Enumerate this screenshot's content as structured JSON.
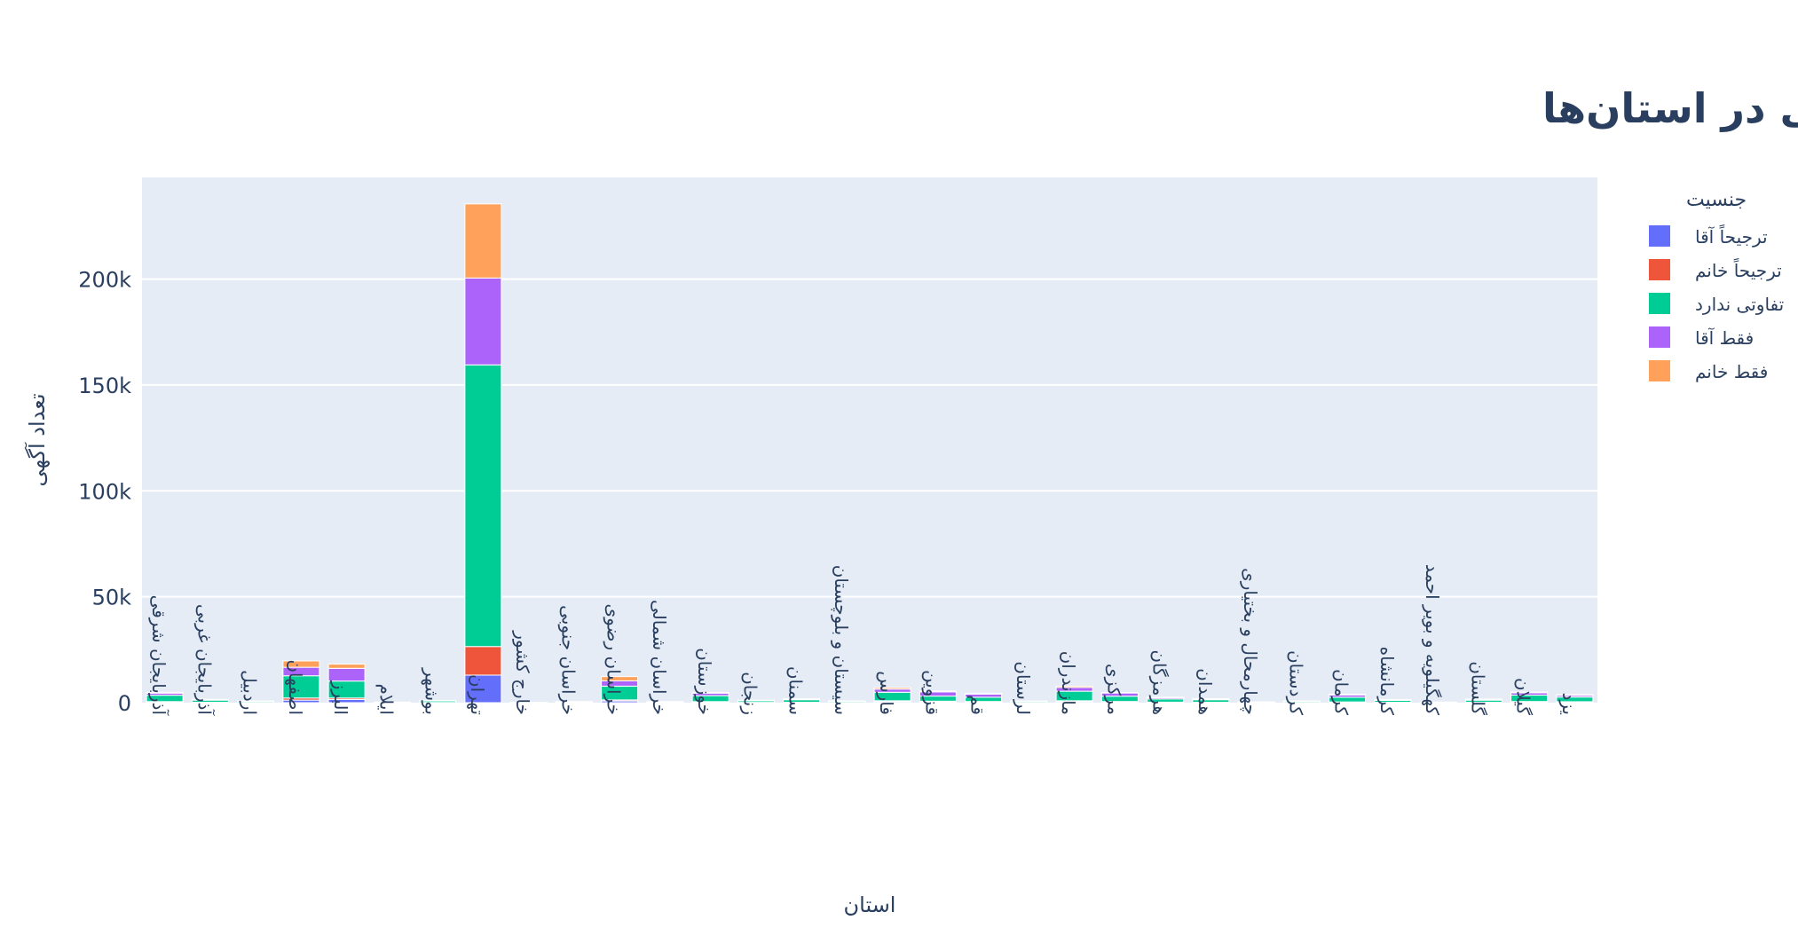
{
  "chart_data": {
    "type": "bar",
    "barmode": "stack",
    "title": "ترجیحات جنسیتی در استان‌ها",
    "xlabel": "استان",
    "ylabel": "تعداد آگهی",
    "ylim": [
      0,
      248000
    ],
    "yticks": [
      0,
      50000,
      100000,
      150000,
      200000
    ],
    "ytick_labels": [
      "0",
      "50k",
      "100k",
      "150k",
      "200k"
    ],
    "grid": true,
    "legend_title": "جنسیت",
    "legend_position": "right",
    "categories": [
      "آذربایجان شرقی",
      "آذربایجان غربی",
      "اردبیل",
      "اصفهان",
      "البرز",
      "ایلام",
      "بوشهر",
      "تهران",
      "خارج کشور",
      "خراسان جنوبی",
      "خراسان رضوی",
      "خراسان شمالی",
      "خوزستان",
      "زنجان",
      "سمنان",
      "سیستان و بلوچستان",
      "فارس",
      "قزوین",
      "قم",
      "لرستان",
      "مازندران",
      "مرکزی",
      "هرمزگان",
      "همدان",
      "چهارمحال و بختیاری",
      "کردستان",
      "کرمان",
      "کرمانشاه",
      "کهگیلویه و بویر احمد",
      "گلستان",
      "گیلان",
      "یزد"
    ],
    "series": [
      {
        "name": "ترجیحاً آقا",
        "color": "#636efa",
        "values": [
          300,
          100,
          50,
          1200,
          1500,
          20,
          60,
          13000,
          10,
          30,
          800,
          30,
          300,
          80,
          100,
          60,
          500,
          400,
          300,
          50,
          500,
          300,
          150,
          100,
          30,
          50,
          200,
          100,
          20,
          100,
          300,
          250
        ]
      },
      {
        "name": "ترجیحاً خانم",
        "color": "#ef553b",
        "values": [
          200,
          80,
          40,
          1000,
          700,
          20,
          40,
          13500,
          10,
          20,
          500,
          20,
          200,
          60,
          80,
          40,
          400,
          300,
          250,
          30,
          400,
          250,
          100,
          80,
          20,
          40,
          150,
          80,
          20,
          80,
          250,
          200
        ]
      },
      {
        "name": "تفاوتی ندارد",
        "color": "#00cc96",
        "values": [
          3000,
          1000,
          500,
          10500,
          8000,
          150,
          700,
          133000,
          100,
          300,
          6500,
          300,
          2800,
          700,
          1200,
          500,
          4000,
          2400,
          2000,
          500,
          4500,
          2500,
          1500,
          1200,
          200,
          500,
          2200,
          900,
          150,
          1000,
          3000,
          2200
        ]
      },
      {
        "name": "فقط آقا",
        "color": "#ab63fa",
        "values": [
          1000,
          300,
          150,
          4000,
          6000,
          50,
          200,
          41000,
          20,
          100,
          2500,
          100,
          1200,
          250,
          350,
          200,
          1500,
          2000,
          1500,
          150,
          1800,
          1500,
          600,
          400,
          80,
          200,
          1100,
          300,
          50,
          400,
          1100,
          800
        ]
      },
      {
        "name": "فقط خانم",
        "color": "#ffa15a",
        "values": [
          400,
          100,
          60,
          3000,
          2000,
          20,
          80,
          35000,
          10,
          50,
          2000,
          40,
          300,
          80,
          100,
          60,
          700,
          400,
          300,
          50,
          600,
          300,
          200,
          150,
          30,
          60,
          300,
          120,
          20,
          120,
          400,
          300
        ]
      }
    ]
  }
}
